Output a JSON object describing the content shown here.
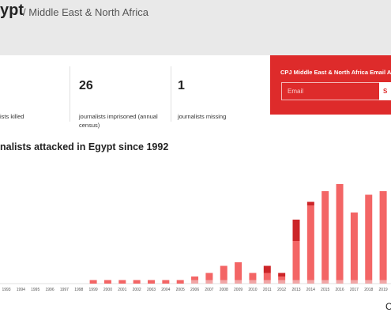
{
  "header": {
    "country": "ypt",
    "region": "/ Middle East & North Africa"
  },
  "stats": [
    {
      "value": "",
      "label": "ists killed"
    },
    {
      "value": "26",
      "label": "journalists imprisoned (annual census)"
    },
    {
      "value": "1",
      "label": "journalists missing"
    }
  ],
  "alert": {
    "title": "CPJ Middle East & North Africa Email Ale",
    "email_placeholder": "Email",
    "submit_label": "S"
  },
  "chart_title": "nalists attacked in Egypt since 1992",
  "corner_text": "C",
  "colors": {
    "header_bg": "#e9e9e9",
    "alert_bg": "#de2b2b",
    "bar_main": "#f36565",
    "bar_dark": "#cc2528",
    "bar_light": "#f1a6a6"
  },
  "chart_data": {
    "type": "bar",
    "stacked": true,
    "categories": [
      "1993",
      "1994",
      "1995",
      "1996",
      "1997",
      "1998",
      "1999",
      "2000",
      "2001",
      "2002",
      "2003",
      "2004",
      "2005",
      "2006",
      "2007",
      "2008",
      "2009",
      "2010",
      "2011",
      "2012",
      "2013",
      "2014",
      "2015",
      "2016",
      "2017",
      "2018",
      "2019"
    ],
    "series": [
      {
        "color": "#f1a6a6",
        "values": [
          0,
          0,
          0,
          0,
          0,
          0,
          0,
          0,
          0,
          0,
          0,
          0,
          0,
          1,
          1,
          1,
          1,
          1,
          1,
          1,
          1,
          1,
          1,
          1,
          1,
          1,
          1
        ]
      },
      {
        "color": "#f36565",
        "values": [
          0,
          0,
          0,
          0,
          0,
          0,
          1,
          1,
          1,
          1,
          1,
          1,
          1,
          1,
          2,
          4,
          5,
          2,
          2,
          1,
          11,
          21,
          25,
          27,
          19,
          24,
          25
        ]
      },
      {
        "color": "#cc2528",
        "values": [
          0,
          0,
          0,
          0,
          0,
          0,
          0,
          0,
          0,
          0,
          0,
          0,
          0,
          0,
          0,
          0,
          0,
          0,
          2,
          1,
          6,
          1,
          0,
          0,
          0,
          0,
          0
        ]
      }
    ],
    "title": "nalists attacked in Egypt since 1992",
    "ylim": [
      0,
      30
    ],
    "grid": false,
    "legend": "none"
  }
}
